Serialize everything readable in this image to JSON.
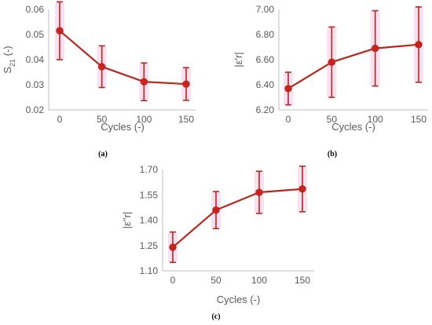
{
  "colors": {
    "series": "#b5281c",
    "marker": "#c9231c",
    "axis": "#bfbfbf",
    "text": "#595959",
    "errorband": "#f6c6e3"
  },
  "chart_data": [
    {
      "type": "line",
      "panel_label": "(a)",
      "x": [
        0,
        50,
        100,
        150
      ],
      "y": [
        0.0515,
        0.0372,
        0.0312,
        0.0303
      ],
      "yerr": [
        0.0115,
        0.0083,
        0.0075,
        0.0065
      ],
      "xlabel": "Cycles (-)",
      "ylabel_main": "S",
      "ylabel_sub": "21",
      "ylabel_unit": " (-)",
      "ylim": [
        0.02,
        0.06
      ],
      "yticks": [
        0.02,
        0.03,
        0.04,
        0.05,
        0.06
      ],
      "ytick_labels": [
        "0.02",
        "0.03",
        "0.04",
        "0.05",
        "0.06"
      ],
      "xticks": [
        0,
        50,
        100,
        150
      ],
      "xtick_labels": [
        "0",
        "50",
        "100",
        "150"
      ],
      "grid": false,
      "legend": "none"
    },
    {
      "type": "line",
      "panel_label": "(b)",
      "x": [
        0,
        50,
        100,
        150
      ],
      "y": [
        6.37,
        6.58,
        6.69,
        6.72
      ],
      "yerr": [
        0.13,
        0.28,
        0.3,
        0.3
      ],
      "xlabel": "Cycles (-)",
      "ylabel_main": "|ε'r|",
      "ylabel_sub": "",
      "ylabel_unit": "",
      "ylim": [
        6.2,
        7.0
      ],
      "yticks": [
        6.2,
        6.4,
        6.6,
        6.8,
        7.0
      ],
      "ytick_labels": [
        "6.20",
        "6.40",
        "6.60",
        "6.80",
        "7.00"
      ],
      "xticks": [
        0,
        50,
        100,
        150
      ],
      "xtick_labels": [
        "0",
        "50",
        "100",
        "150"
      ],
      "grid": false,
      "legend": "none"
    },
    {
      "type": "line",
      "panel_label": "(c)",
      "x": [
        0,
        50,
        100,
        150
      ],
      "y": [
        1.24,
        1.46,
        1.565,
        1.585
      ],
      "yerr": [
        0.09,
        0.11,
        0.125,
        0.135
      ],
      "xlabel": "Cycles (-)",
      "ylabel_main": "|ε''r|",
      "ylabel_sub": "",
      "ylabel_unit": "",
      "ylim": [
        1.1,
        1.7
      ],
      "yticks": [
        1.1,
        1.25,
        1.4,
        1.55,
        1.7
      ],
      "ytick_labels": [
        "1.10",
        "1.25",
        "1.40",
        "1.55",
        "1.70"
      ],
      "xticks": [
        0,
        50,
        100,
        150
      ],
      "xtick_labels": [
        "0",
        "50",
        "100",
        "150"
      ],
      "grid": false,
      "legend": "none"
    }
  ]
}
